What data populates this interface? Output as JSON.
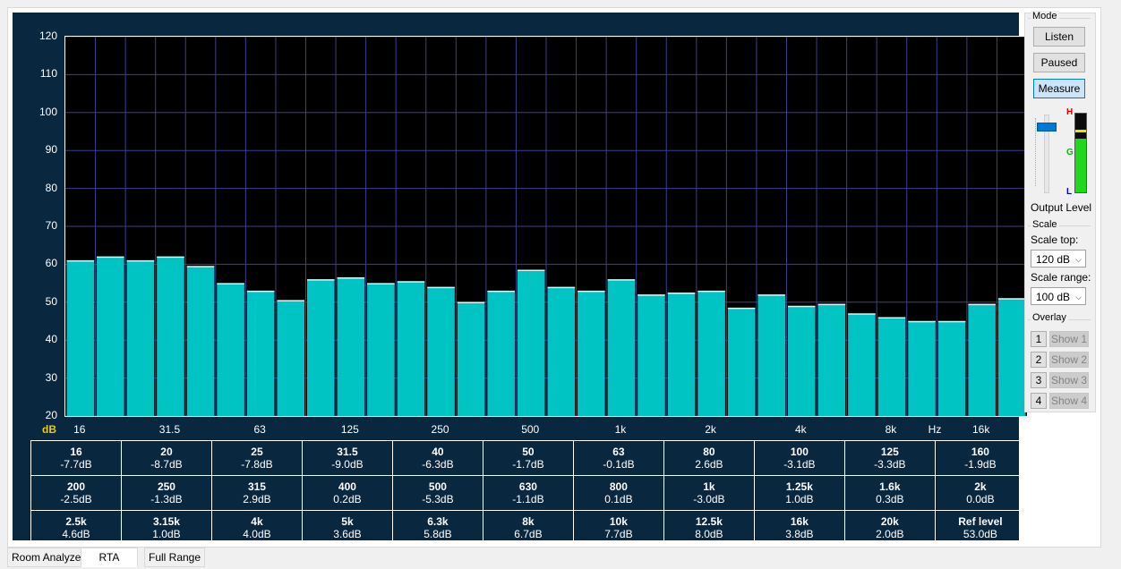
{
  "chart_data": {
    "type": "bar",
    "y_unit": "dB",
    "x_unit": "Hz",
    "ylim": [
      20,
      120
    ],
    "yticks": [
      "120",
      "110",
      "100",
      "90",
      "80",
      "70",
      "60",
      "50",
      "40",
      "30",
      "20"
    ],
    "xtick_labels": [
      "16",
      "31.5",
      "63",
      "125",
      "250",
      "500",
      "1k",
      "2k",
      "4k",
      "8k",
      "16k"
    ],
    "categories": [
      "16",
      "20",
      "25",
      "31.5",
      "40",
      "50",
      "63",
      "80",
      "100",
      "125",
      "160",
      "200",
      "250",
      "315",
      "400",
      "500",
      "630",
      "800",
      "1k",
      "1.25k",
      "1.6k",
      "2k",
      "2.5k",
      "3.15k",
      "4k",
      "5k",
      "6.3k",
      "8k",
      "10k",
      "12.5k",
      "16k",
      "20k"
    ],
    "values": [
      61,
      62,
      61,
      62,
      59.5,
      55,
      53,
      50.5,
      56,
      56.5,
      55,
      55.5,
      54,
      50,
      53,
      58.5,
      54,
      53,
      56,
      52,
      52.5,
      53,
      48.5,
      52,
      49,
      49.5,
      47,
      46,
      45,
      45,
      49.5,
      51
    ],
    "bar_color": "#00c4c4",
    "background": "#000000",
    "grid": true
  },
  "bands_table": [
    [
      {
        "f": "16",
        "v": "-7.7dB"
      },
      {
        "f": "20",
        "v": "-8.7dB"
      },
      {
        "f": "25",
        "v": "-7.8dB"
      },
      {
        "f": "31.5",
        "v": "-9.0dB"
      },
      {
        "f": "40",
        "v": "-6.3dB"
      },
      {
        "f": "50",
        "v": "-1.7dB"
      },
      {
        "f": "63",
        "v": "-0.1dB"
      },
      {
        "f": "80",
        "v": "2.6dB"
      },
      {
        "f": "100",
        "v": "-3.1dB"
      },
      {
        "f": "125",
        "v": "-3.3dB"
      },
      {
        "f": "160",
        "v": "-1.9dB"
      }
    ],
    [
      {
        "f": "200",
        "v": "-2.5dB"
      },
      {
        "f": "250",
        "v": "-1.3dB"
      },
      {
        "f": "315",
        "v": "2.9dB"
      },
      {
        "f": "400",
        "v": "0.2dB"
      },
      {
        "f": "500",
        "v": "-5.3dB"
      },
      {
        "f": "630",
        "v": "-1.1dB"
      },
      {
        "f": "800",
        "v": "0.1dB"
      },
      {
        "f": "1k",
        "v": "-3.0dB"
      },
      {
        "f": "1.25k",
        "v": "1.0dB"
      },
      {
        "f": "1.6k",
        "v": "0.3dB"
      },
      {
        "f": "2k",
        "v": "0.0dB"
      }
    ],
    [
      {
        "f": "2.5k",
        "v": "4.6dB"
      },
      {
        "f": "3.15k",
        "v": "1.0dB"
      },
      {
        "f": "4k",
        "v": "4.0dB"
      },
      {
        "f": "5k",
        "v": "3.6dB"
      },
      {
        "f": "6.3k",
        "v": "5.8dB"
      },
      {
        "f": "8k",
        "v": "6.7dB"
      },
      {
        "f": "10k",
        "v": "7.7dB"
      },
      {
        "f": "12.5k",
        "v": "8.0dB"
      },
      {
        "f": "16k",
        "v": "3.8dB"
      },
      {
        "f": "20k",
        "v": "2.0dB"
      },
      {
        "f": "Ref level",
        "v": "53.0dB"
      }
    ]
  ],
  "mode": {
    "title": "Mode",
    "listen": "Listen",
    "paused": "Paused",
    "measure": "Measure",
    "output_level_label": "Output Level",
    "meter_h": "H",
    "meter_g": "G",
    "meter_l": "L",
    "output_slider_level": 0.88,
    "meter_level": 0.68,
    "meter_peak": 0.8
  },
  "scale": {
    "title": "Scale",
    "top_label": "Scale top:",
    "top_value": "120 dB",
    "range_label": "Scale range:",
    "range_value": "100 dB"
  },
  "overlay": {
    "title": "Overlay",
    "items": [
      {
        "num": "1",
        "show": "Show 1"
      },
      {
        "num": "2",
        "show": "Show 2"
      },
      {
        "num": "3",
        "show": "Show 3"
      },
      {
        "num": "4",
        "show": "Show 4"
      }
    ]
  },
  "tabs": [
    "Room Analyzer",
    "RTA",
    "Full Range"
  ],
  "colors": {
    "panel": "#0a2740",
    "grid": "#3e3e8c",
    "unit_db": "#f0c800",
    "meter_green": "#1fd81f",
    "meter_peak": "#f0e000"
  }
}
